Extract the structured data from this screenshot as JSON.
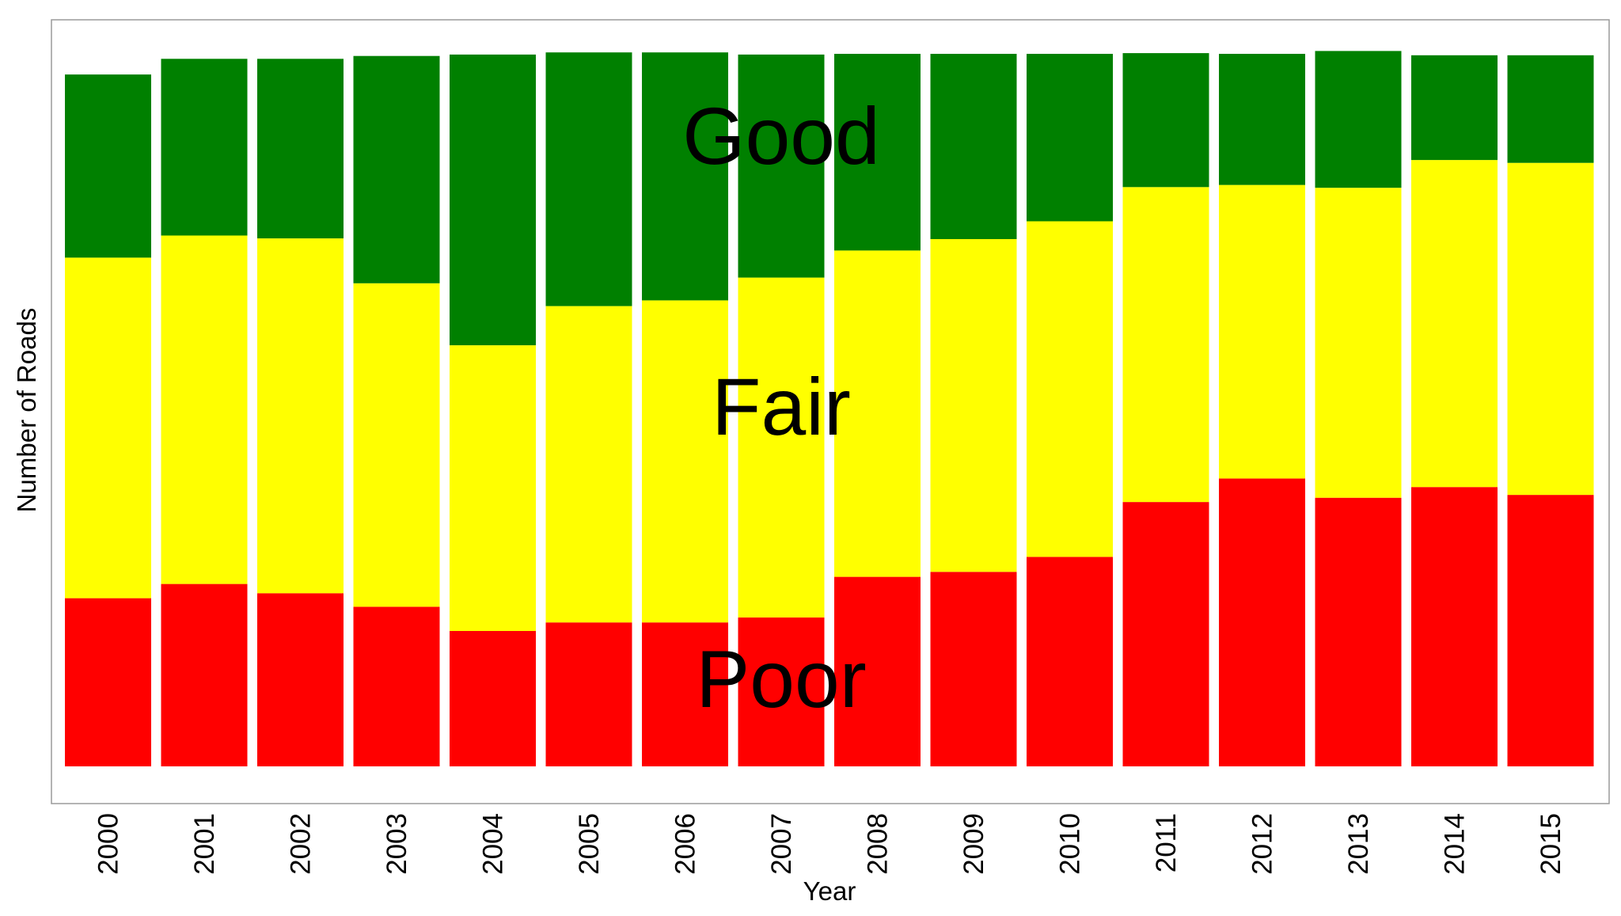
{
  "chart_data": {
    "type": "bar",
    "stacked": true,
    "xlabel": "Year",
    "ylabel": "Number of Roads",
    "categories": [
      "2000",
      "2001",
      "2002",
      "2003",
      "2004",
      "2005",
      "2006",
      "2007",
      "2008",
      "2009",
      "2010",
      "2011",
      "2012",
      "2013",
      "2014",
      "2015"
    ],
    "ylim": [
      0,
      1000
    ],
    "y_tick_labels_shown": false,
    "grid": false,
    "legend": "none",
    "series": [
      {
        "name": "Poor",
        "color": "#ff0000",
        "values": [
          236,
          256,
          243,
          224,
          190,
          202,
          202,
          209,
          266,
          273,
          294,
          371,
          404,
          377,
          392,
          381
        ]
      },
      {
        "name": "Fair",
        "color": "#ffff00",
        "values": [
          478,
          489,
          498,
          454,
          401,
          444,
          452,
          477,
          458,
          467,
          471,
          442,
          412,
          435,
          459,
          466
        ]
      },
      {
        "name": "Good",
        "color": "#008000",
        "values": [
          257,
          248,
          252,
          319,
          408,
          356,
          348,
          313,
          276,
          260,
          235,
          188,
          184,
          192,
          147,
          151
        ]
      }
    ],
    "annotations": [
      "Good",
      "Fair",
      "Poor"
    ]
  }
}
